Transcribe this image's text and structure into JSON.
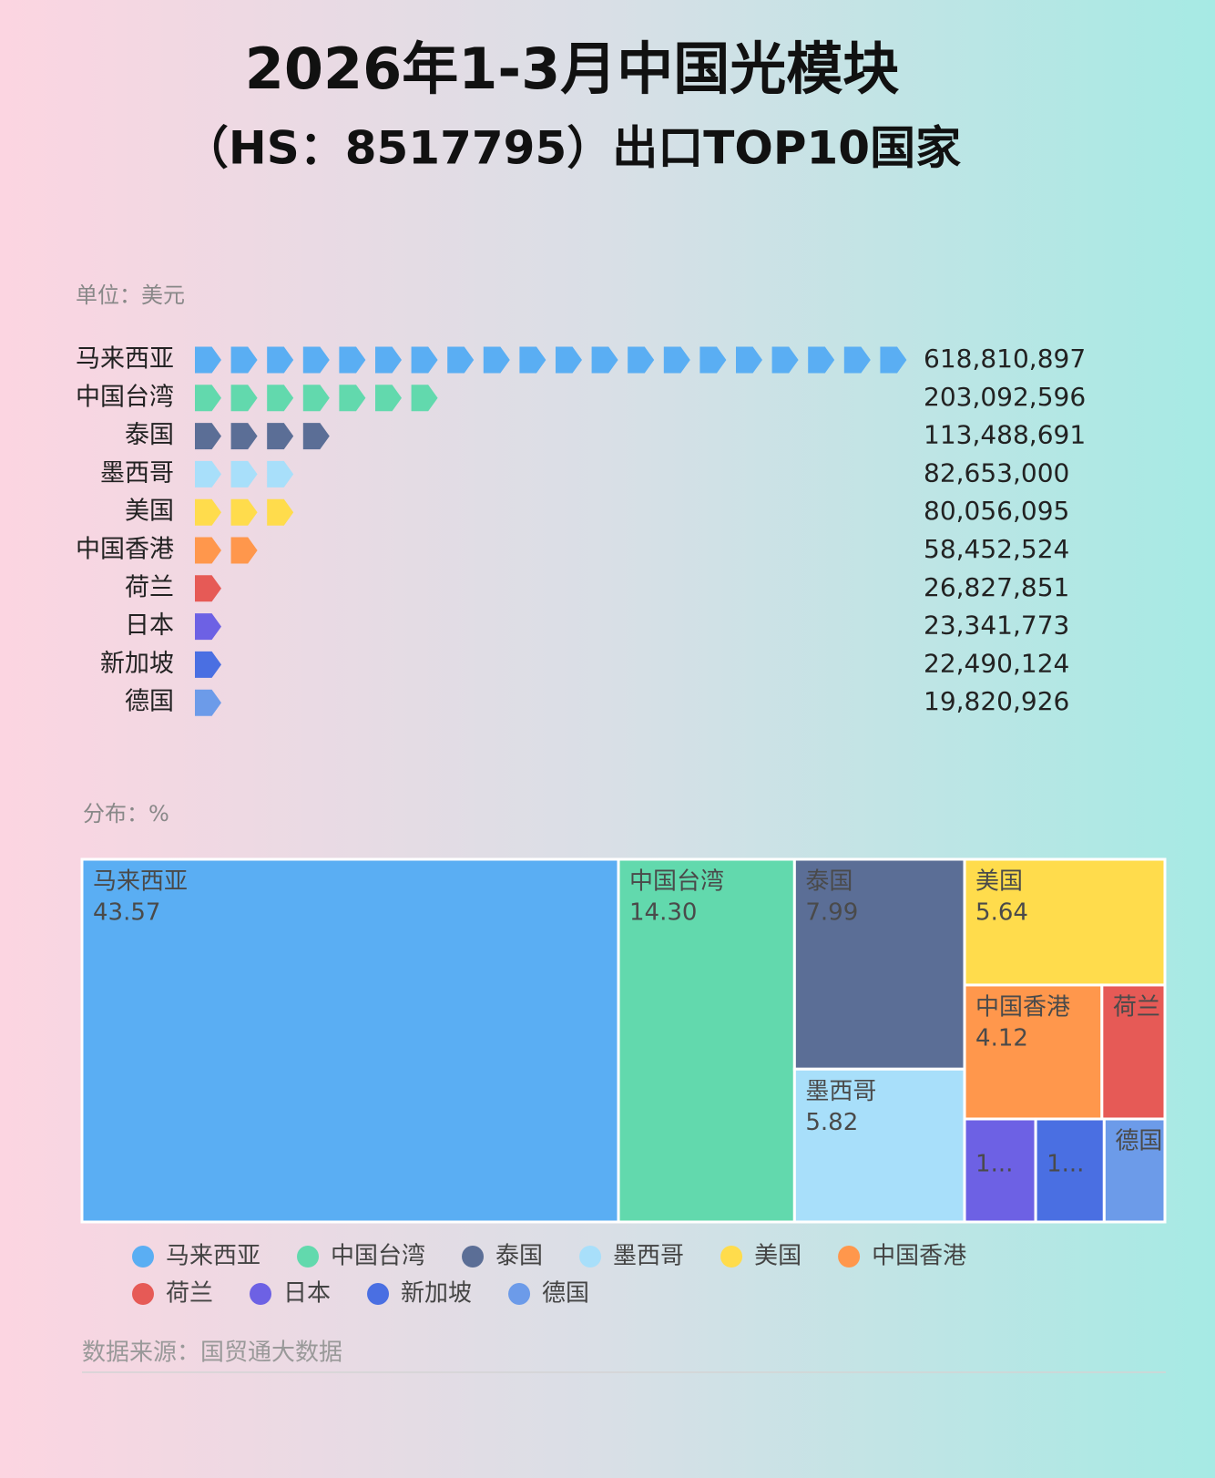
{
  "title": "2026年1-3月中国光模块",
  "subtitle": "（HS：8517795）出口TOP10国家",
  "chart_data": [
    {
      "type": "pictorial-bar",
      "unit_label": "单位：美元",
      "categories": [
        "马来西亚",
        "中国台湾",
        "泰国",
        "墨西哥",
        "美国",
        "中国香港",
        "荷兰",
        "日本",
        "新加坡",
        "德国"
      ],
      "values": [
        618810897,
        203092596,
        113488691,
        82653000,
        80056095,
        58452524,
        26827851,
        23341773,
        22490124,
        19820926
      ],
      "value_labels": [
        "618,810,897",
        "203,092,596",
        "113,488,691",
        "82,653,000",
        "80,056,095",
        "58,452,524",
        "26,827,851",
        "23,341,773",
        "22,490,124",
        "19,820,926"
      ],
      "colors": [
        "#5aaef3",
        "#62d9ad",
        "#5b6e96",
        "#a8dffa",
        "#ffdc4c",
        "#ff974c",
        "#e65a56",
        "#6d61e4",
        "#4a6fe2",
        "#6c9be9"
      ]
    },
    {
      "type": "treemap",
      "unit_label": "分布：%",
      "categories": [
        "马来西亚",
        "中国台湾",
        "泰国",
        "墨西哥",
        "美国",
        "中国香港",
        "荷兰",
        "日本",
        "新加坡",
        "德国"
      ],
      "values": [
        43.57,
        14.3,
        7.99,
        5.82,
        5.64,
        4.12,
        1.89,
        1.64,
        1.58,
        1.4
      ],
      "value_labels": [
        "43.57",
        "14.30",
        "7.99",
        "5.82",
        "5.64",
        "4.12",
        null,
        "1...",
        "1...",
        null
      ],
      "name_shown": [
        true,
        true,
        true,
        true,
        true,
        true,
        true,
        false,
        false,
        true
      ],
      "colors": [
        "#5aaef3",
        "#62d9ad",
        "#5b6e96",
        "#a8dffa",
        "#ffdc4c",
        "#ff974c",
        "#e65a56",
        "#6d61e4",
        "#4a6fe2",
        "#6c9be9"
      ]
    }
  ],
  "source": "数据来源：国贸通大数据"
}
